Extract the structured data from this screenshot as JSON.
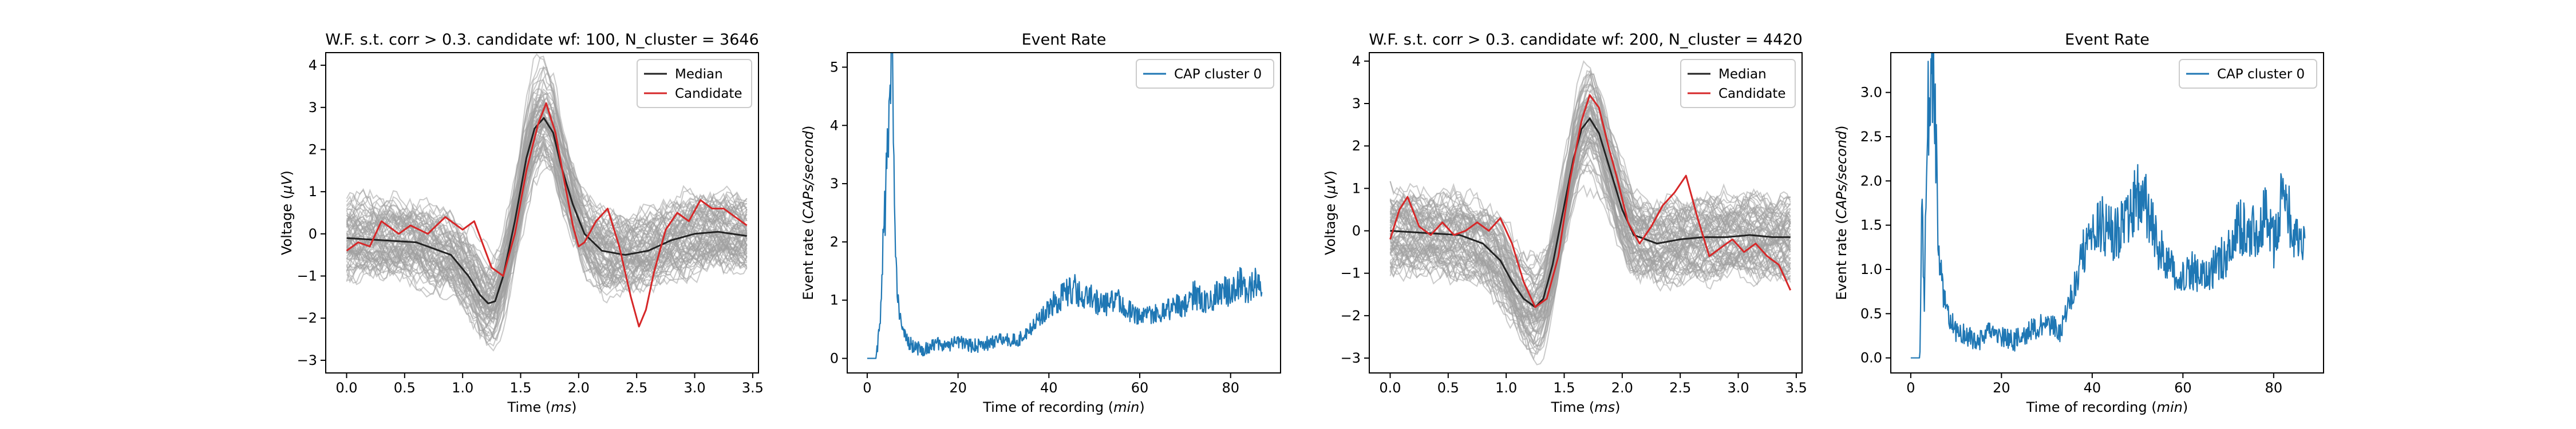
{
  "chart_data": [
    {
      "type": "line",
      "title": "W.F. s.t. corr > 0.3. candidate wf: 100, N_cluster = 3646",
      "xlabel": "Time (ms)",
      "ylabel": "Voltage (μV)",
      "xlim": [
        -0.18,
        3.55
      ],
      "ylim": [
        -3.3,
        4.3
      ],
      "xticks": [
        0.0,
        0.5,
        1.0,
        1.5,
        2.0,
        2.5,
        3.0,
        3.5
      ],
      "xtick_labels": [
        "0.0",
        "0.5",
        "1.0",
        "1.5",
        "2.0",
        "2.5",
        "3.0",
        "3.5"
      ],
      "yticks": [
        -3,
        -2,
        -1,
        0,
        1,
        2,
        3,
        4
      ],
      "ytick_labels": [
        "−3",
        "−2",
        "−1",
        "0",
        "1",
        "2",
        "3",
        "4"
      ],
      "legend": {
        "placement": "top-right",
        "entries": [
          "Median",
          "Candidate"
        ]
      },
      "colors": {
        "traces": "#a0a0a0",
        "median": "#222222",
        "candidate": "#d62728"
      },
      "background_traces": {
        "count": 3646,
        "envelope_halfwidth": 1.1
      },
      "series": [
        {
          "name": "Median",
          "x": [
            0.0,
            0.3,
            0.6,
            0.9,
            1.05,
            1.15,
            1.22,
            1.28,
            1.35,
            1.45,
            1.55,
            1.62,
            1.7,
            1.78,
            1.85,
            1.95,
            2.05,
            2.2,
            2.4,
            2.6,
            2.8,
            3.0,
            3.2,
            3.45
          ],
          "y": [
            -0.1,
            -0.15,
            -0.2,
            -0.5,
            -1.0,
            -1.45,
            -1.65,
            -1.6,
            -1.0,
            0.3,
            1.8,
            2.5,
            2.75,
            2.4,
            1.6,
            0.7,
            0.0,
            -0.4,
            -0.5,
            -0.4,
            -0.15,
            0.0,
            0.05,
            -0.05
          ]
        },
        {
          "name": "Candidate",
          "x": [
            0.0,
            0.1,
            0.2,
            0.3,
            0.45,
            0.55,
            0.7,
            0.85,
            1.0,
            1.1,
            1.25,
            1.35,
            1.45,
            1.55,
            1.65,
            1.72,
            1.8,
            1.88,
            1.95,
            2.0,
            2.05,
            2.15,
            2.25,
            2.35,
            2.45,
            2.52,
            2.58,
            2.65,
            2.75,
            2.85,
            2.95,
            3.05,
            3.15,
            3.25,
            3.35,
            3.45
          ],
          "y": [
            -0.4,
            -0.2,
            -0.3,
            0.3,
            0.0,
            0.2,
            0.0,
            0.4,
            0.1,
            0.3,
            -0.8,
            -1.0,
            0.0,
            1.5,
            2.6,
            3.1,
            2.4,
            1.2,
            0.2,
            -0.3,
            -0.2,
            0.3,
            0.6,
            -0.3,
            -1.5,
            -2.2,
            -1.8,
            -0.9,
            0.1,
            0.5,
            0.3,
            0.8,
            0.6,
            0.6,
            0.4,
            0.2
          ]
        }
      ]
    },
    {
      "type": "line",
      "title": "Event Rate",
      "xlabel": "Time of recording (min)",
      "ylabel": "Event rate (CAPs/second)",
      "xlim": [
        -4.4,
        91.0
      ],
      "ylim": [
        -0.25,
        5.25
      ],
      "xticks": [
        0,
        20,
        40,
        60,
        80
      ],
      "xtick_labels": [
        "0",
        "20",
        "40",
        "60",
        "80"
      ],
      "yticks": [
        0,
        1,
        2,
        3,
        4,
        5
      ],
      "ytick_labels": [
        "0",
        "1",
        "2",
        "3",
        "4",
        "5"
      ],
      "legend": {
        "placement": "top-right",
        "entries": [
          "CAP cluster 0"
        ]
      },
      "colors": {
        "series": "#1f77b4"
      },
      "series": [
        {
          "name": "CAP cluster 0",
          "x": [
            0,
            2,
            3,
            3.5,
            4,
            4.5,
            5,
            5.5,
            6,
            7,
            8,
            10,
            12,
            15,
            18,
            20,
            23,
            26,
            30,
            33,
            36,
            38,
            40,
            42,
            45,
            48,
            50,
            52,
            55,
            58,
            60,
            62,
            65,
            68,
            70,
            72,
            75,
            78,
            80,
            82,
            84,
            86,
            87
          ],
          "y": [
            0,
            0,
            0.8,
            2.1,
            2.6,
            3.4,
            4.7,
            5.05,
            2.2,
            0.8,
            0.4,
            0.2,
            0.15,
            0.25,
            0.2,
            0.3,
            0.2,
            0.25,
            0.35,
            0.3,
            0.5,
            0.7,
            0.9,
            1.0,
            1.2,
            1.1,
            1.0,
            0.9,
            1.0,
            0.8,
            0.7,
            0.75,
            0.8,
            0.9,
            0.9,
            1.1,
            0.9,
            1.2,
            1.1,
            1.3,
            1.2,
            1.3,
            1.0
          ]
        }
      ]
    },
    {
      "type": "line",
      "title": "W.F. s.t. corr > 0.3. candidate wf: 200, N_cluster = 4420",
      "xlabel": "Time (ms)",
      "ylabel": "Voltage (μV)",
      "xlim": [
        -0.18,
        3.55
      ],
      "ylim": [
        -3.35,
        4.2
      ],
      "xticks": [
        0.0,
        0.5,
        1.0,
        1.5,
        2.0,
        2.5,
        3.0,
        3.5
      ],
      "xtick_labels": [
        "0.0",
        "0.5",
        "1.0",
        "1.5",
        "2.0",
        "2.5",
        "3.0",
        "3.5"
      ],
      "yticks": [
        -3,
        -2,
        -1,
        0,
        1,
        2,
        3,
        4
      ],
      "ytick_labels": [
        "−3",
        "−2",
        "−1",
        "0",
        "1",
        "2",
        "3",
        "4"
      ],
      "legend": {
        "placement": "top-right",
        "entries": [
          "Median",
          "Candidate"
        ]
      },
      "colors": {
        "traces": "#a0a0a0",
        "median": "#222222",
        "candidate": "#d62728"
      },
      "background_traces": {
        "count": 4420,
        "envelope_halfwidth": 1.1
      },
      "series": [
        {
          "name": "Median",
          "x": [
            0.0,
            0.3,
            0.6,
            0.8,
            0.95,
            1.05,
            1.15,
            1.25,
            1.32,
            1.4,
            1.5,
            1.58,
            1.65,
            1.72,
            1.8,
            1.9,
            2.0,
            2.1,
            2.3,
            2.5,
            2.7,
            2.9,
            3.1,
            3.3,
            3.45
          ],
          "y": [
            0.0,
            -0.05,
            -0.1,
            -0.3,
            -0.7,
            -1.2,
            -1.6,
            -1.8,
            -1.6,
            -0.8,
            0.6,
            1.7,
            2.4,
            2.65,
            2.3,
            1.4,
            0.5,
            -0.1,
            -0.3,
            -0.2,
            -0.15,
            -0.15,
            -0.1,
            -0.15,
            -0.15
          ]
        },
        {
          "name": "Candidate",
          "x": [
            0.0,
            0.08,
            0.15,
            0.25,
            0.35,
            0.45,
            0.55,
            0.65,
            0.75,
            0.85,
            0.95,
            1.05,
            1.15,
            1.25,
            1.35,
            1.45,
            1.55,
            1.65,
            1.72,
            1.8,
            1.88,
            1.95,
            2.05,
            2.15,
            2.25,
            2.35,
            2.45,
            2.55,
            2.65,
            2.75,
            2.85,
            2.95,
            3.05,
            3.15,
            3.25,
            3.35,
            3.45
          ],
          "y": [
            -0.2,
            0.5,
            0.8,
            0.1,
            -0.1,
            0.2,
            -0.1,
            0.0,
            0.2,
            0.0,
            0.3,
            -0.3,
            -1.2,
            -1.8,
            -1.6,
            -0.6,
            1.2,
            2.6,
            3.2,
            2.9,
            2.0,
            1.3,
            0.2,
            -0.3,
            0.1,
            0.6,
            0.9,
            1.3,
            0.3,
            -0.6,
            -0.4,
            -0.2,
            -0.5,
            -0.3,
            -0.6,
            -0.8,
            -1.4
          ]
        }
      ]
    },
    {
      "type": "line",
      "title": "Event Rate",
      "xlabel": "Time of recording (min)",
      "ylabel": "Event rate (CAPs/second)",
      "xlim": [
        -4.4,
        91.0
      ],
      "ylim": [
        -0.17,
        3.45
      ],
      "xticks": [
        0,
        20,
        40,
        60,
        80
      ],
      "xtick_labels": [
        "0",
        "20",
        "40",
        "60",
        "80"
      ],
      "yticks": [
        0.0,
        0.5,
        1.0,
        1.5,
        2.0,
        2.5,
        3.0
      ],
      "ytick_labels": [
        "0.0",
        "0.5",
        "1.0",
        "1.5",
        "2.0",
        "2.5",
        "3.0"
      ],
      "legend": {
        "placement": "top-right",
        "entries": [
          "CAP cluster 0"
        ]
      },
      "colors": {
        "series": "#1f77b4"
      },
      "series": [
        {
          "name": "CAP cluster 0",
          "x": [
            0,
            2,
            2.5,
            3,
            3.5,
            4,
            4.5,
            5,
            5.5,
            6,
            7,
            8,
            10,
            12,
            15,
            18,
            20,
            23,
            26,
            30,
            33,
            36,
            38,
            40,
            42,
            45,
            48,
            50,
            52,
            55,
            58,
            60,
            62,
            65,
            68,
            70,
            72,
            75,
            78,
            80,
            82,
            84,
            86,
            87
          ],
          "y": [
            0,
            0,
            1.8,
            0.6,
            2.5,
            2.9,
            3.1,
            3.3,
            2.5,
            1.3,
            0.8,
            0.5,
            0.3,
            0.25,
            0.2,
            0.3,
            0.25,
            0.2,
            0.3,
            0.4,
            0.3,
            0.8,
            1.2,
            1.4,
            1.5,
            1.4,
            1.6,
            1.8,
            1.7,
            1.2,
            1.0,
            0.9,
            1.0,
            0.9,
            1.1,
            1.2,
            1.5,
            1.4,
            1.6,
            1.3,
            1.8,
            1.5,
            1.3,
            1.4
          ]
        }
      ]
    }
  ]
}
